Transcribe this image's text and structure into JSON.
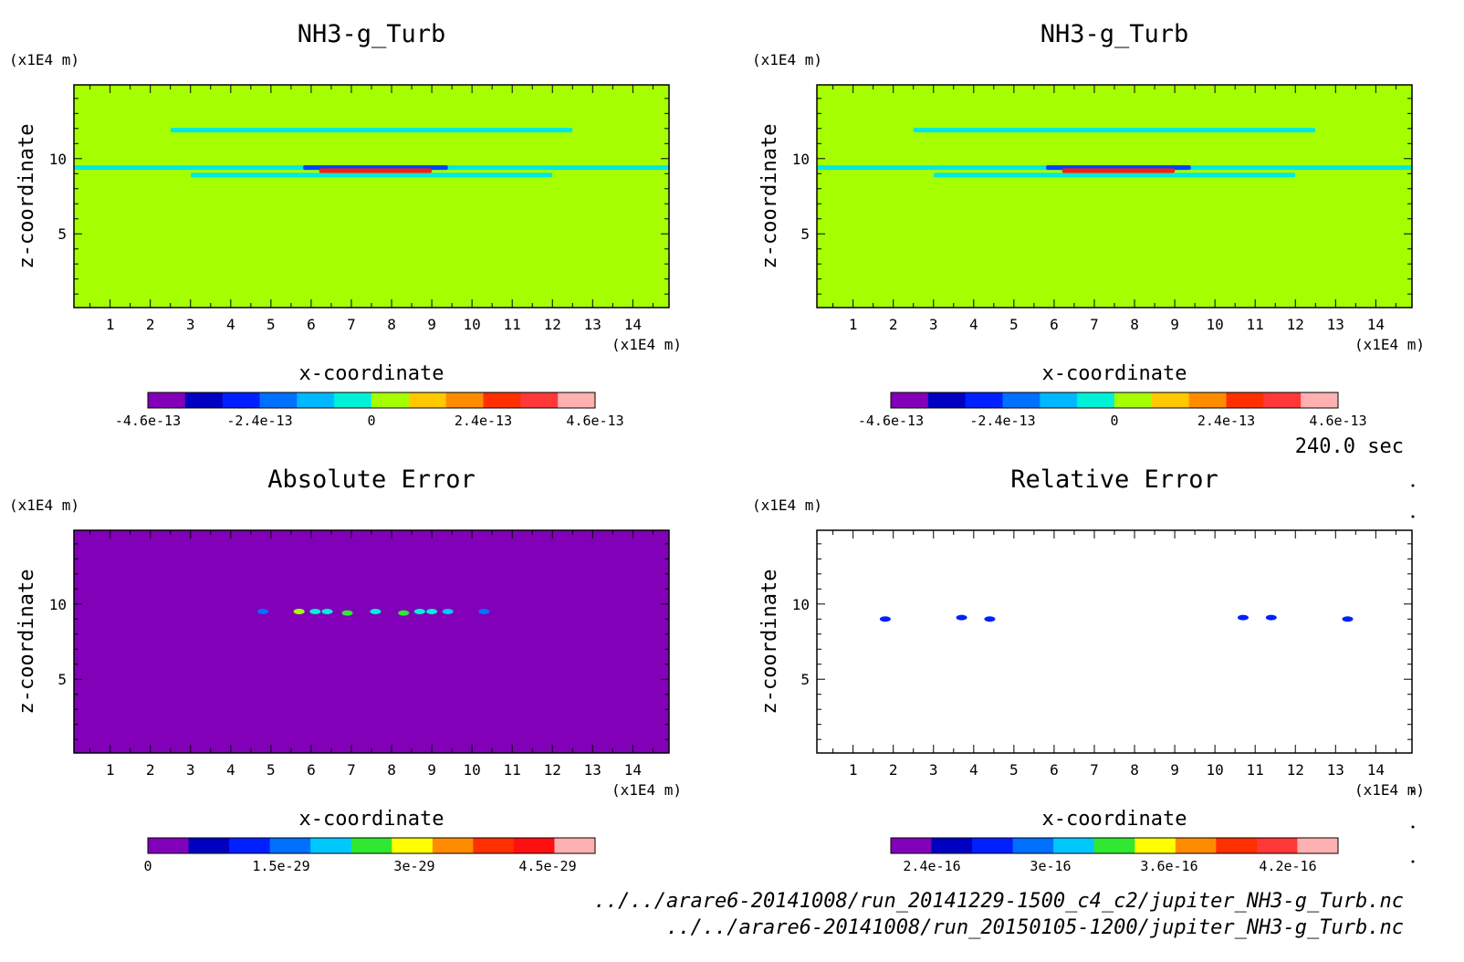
{
  "chart_data": [
    {
      "type": "heatmap",
      "title": "NH3-g_Turb",
      "xlabel": "x-coordinate",
      "ylabel": "z-coordinate",
      "x_unit": "(x1E4 m)",
      "y_unit": "(x1E4 m)",
      "xlim": [
        0.1,
        14.9
      ],
      "ylim": [
        0.1,
        14.9
      ],
      "x_ticks": [
        "1",
        "2",
        "3",
        "4",
        "5",
        "6",
        "7",
        "8",
        "9",
        "10",
        "11",
        "12",
        "13",
        "14"
      ],
      "y_ticks": [
        "5",
        "10"
      ],
      "background_color": "#a6ff00",
      "layers": [
        {
          "x0": 2.5,
          "x1": 12.5,
          "z": 11.9,
          "color": "#00e8e0"
        },
        {
          "x0": 0.1,
          "x1": 14.9,
          "z": 9.4,
          "color": "#00e8e0"
        },
        {
          "x0": 3.0,
          "x1": 12.0,
          "z": 8.9,
          "color": "#00e8e0"
        },
        {
          "x0": 5.8,
          "x1": 9.4,
          "z": 9.4,
          "color": "#0040ff"
        },
        {
          "x0": 6.2,
          "x1": 9.0,
          "z": 9.2,
          "color": "#ff2000"
        }
      ],
      "colorbar": {
        "colors": [
          "#8200b8",
          "#0000c0",
          "#0020ff",
          "#0070ff",
          "#00b8ff",
          "#00f0d8",
          "#a6ff00",
          "#ffc800",
          "#ff8c00",
          "#ff3000",
          "#ff3838",
          "#ffb0b0"
        ],
        "labels": [
          "-4.6e-13",
          "-2.4e-13",
          "0",
          "2.4e-13",
          "4.6e-13"
        ]
      }
    },
    {
      "type": "heatmap",
      "title": "NH3-g_Turb",
      "xlabel": "x-coordinate",
      "ylabel": "z-coordinate",
      "x_unit": "(x1E4 m)",
      "y_unit": "(x1E4 m)",
      "xlim": [
        0.1,
        14.9
      ],
      "ylim": [
        0.1,
        14.9
      ],
      "x_ticks": [
        "1",
        "2",
        "3",
        "4",
        "5",
        "6",
        "7",
        "8",
        "9",
        "10",
        "11",
        "12",
        "13",
        "14"
      ],
      "y_ticks": [
        "5",
        "10"
      ],
      "background_color": "#a6ff00",
      "layers": [
        {
          "x0": 2.5,
          "x1": 12.5,
          "z": 11.9,
          "color": "#00e8e0"
        },
        {
          "x0": 0.1,
          "x1": 14.9,
          "z": 9.4,
          "color": "#00e8e0"
        },
        {
          "x0": 3.0,
          "x1": 12.0,
          "z": 8.9,
          "color": "#00e8e0"
        },
        {
          "x0": 5.8,
          "x1": 9.4,
          "z": 9.4,
          "color": "#0040ff"
        },
        {
          "x0": 6.2,
          "x1": 9.0,
          "z": 9.2,
          "color": "#ff2000"
        }
      ],
      "colorbar": {
        "colors": [
          "#8200b8",
          "#0000c0",
          "#0020ff",
          "#0070ff",
          "#00b8ff",
          "#00f0d8",
          "#a6ff00",
          "#ffc800",
          "#ff8c00",
          "#ff3000",
          "#ff3838",
          "#ffb0b0"
        ],
        "labels": [
          "-4.6e-13",
          "-2.4e-13",
          "0",
          "2.4e-13",
          "4.6e-13"
        ]
      }
    },
    {
      "type": "heatmap",
      "title": "Absolute Error",
      "xlabel": "x-coordinate",
      "ylabel": "z-coordinate",
      "x_unit": "(x1E4 m)",
      "y_unit": "(x1E4 m)",
      "xlim": [
        0.1,
        14.9
      ],
      "ylim": [
        0.1,
        14.9
      ],
      "x_ticks": [
        "1",
        "2",
        "3",
        "4",
        "5",
        "6",
        "7",
        "8",
        "9",
        "10",
        "11",
        "12",
        "13",
        "14"
      ],
      "y_ticks": [
        "5",
        "10"
      ],
      "background_color": "#8200b8",
      "blobs": [
        {
          "x": 4.8,
          "z": 9.5,
          "color": "#0070ff"
        },
        {
          "x": 5.7,
          "z": 9.5,
          "color": "#00c8ff"
        },
        {
          "x": 5.7,
          "z": 9.5,
          "color": "#a6ff00"
        },
        {
          "x": 6.1,
          "z": 9.5,
          "color": "#00f0d8"
        },
        {
          "x": 6.4,
          "z": 9.5,
          "color": "#00f0d8"
        },
        {
          "x": 6.9,
          "z": 9.4,
          "color": "#30e830"
        },
        {
          "x": 7.6,
          "z": 9.5,
          "color": "#00f0d8"
        },
        {
          "x": 8.3,
          "z": 9.4,
          "color": "#30e830"
        },
        {
          "x": 8.7,
          "z": 9.5,
          "color": "#00f0d8"
        },
        {
          "x": 9.0,
          "z": 9.5,
          "color": "#00f0d8"
        },
        {
          "x": 9.4,
          "z": 9.5,
          "color": "#00c8ff"
        },
        {
          "x": 10.3,
          "z": 9.5,
          "color": "#0070ff"
        }
      ],
      "colorbar": {
        "colors": [
          "#8200b8",
          "#0000c0",
          "#0020ff",
          "#0070ff",
          "#00c8ff",
          "#30e830",
          "#ffff00",
          "#ff8c00",
          "#ff3000",
          "#ff1010",
          "#ffb0b0"
        ],
        "labels": [
          "0",
          "1.5e-29",
          "3e-29",
          "4.5e-29"
        ]
      }
    },
    {
      "type": "heatmap",
      "title": "Relative Error",
      "xlabel": "x-coordinate",
      "ylabel": "z-coordinate",
      "x_unit": "(x1E4 m)",
      "y_unit": "(x1E4 m)",
      "xlim": [
        0.1,
        14.9
      ],
      "ylim": [
        0.1,
        14.9
      ],
      "x_ticks": [
        "1",
        "2",
        "3",
        "4",
        "5",
        "6",
        "7",
        "8",
        "9",
        "10",
        "11",
        "12",
        "13",
        "14"
      ],
      "y_ticks": [
        "5",
        "10"
      ],
      "background_color": "#ffffff",
      "blobs": [
        {
          "x": 1.8,
          "z": 9.0,
          "color": "#0020ff"
        },
        {
          "x": 3.7,
          "z": 9.1,
          "color": "#0020ff"
        },
        {
          "x": 4.4,
          "z": 9.0,
          "color": "#0020ff"
        },
        {
          "x": 10.7,
          "z": 9.1,
          "color": "#0020ff"
        },
        {
          "x": 11.4,
          "z": 9.1,
          "color": "#0020ff"
        },
        {
          "x": 13.3,
          "z": 9.0,
          "color": "#0020ff"
        }
      ],
      "colorbar": {
        "colors": [
          "#8200b8",
          "#0000c0",
          "#0020ff",
          "#0070ff",
          "#00c8ff",
          "#30e830",
          "#ffff00",
          "#ff8c00",
          "#ff3000",
          "#ff3838",
          "#ffb0b0"
        ],
        "labels": [
          "2.4e-16",
          "3e-16",
          "3.6e-16",
          "4.2e-16"
        ]
      }
    }
  ],
  "time_label": "240.0 sec",
  "footer": {
    "file1": "../../arare6-20141008/run_20141229-1500_c4_c2/jupiter_NH3-g_Turb.nc",
    "file2": "../../arare6-20141008/run_20150105-1200/jupiter_NH3-g_Turb.nc"
  }
}
